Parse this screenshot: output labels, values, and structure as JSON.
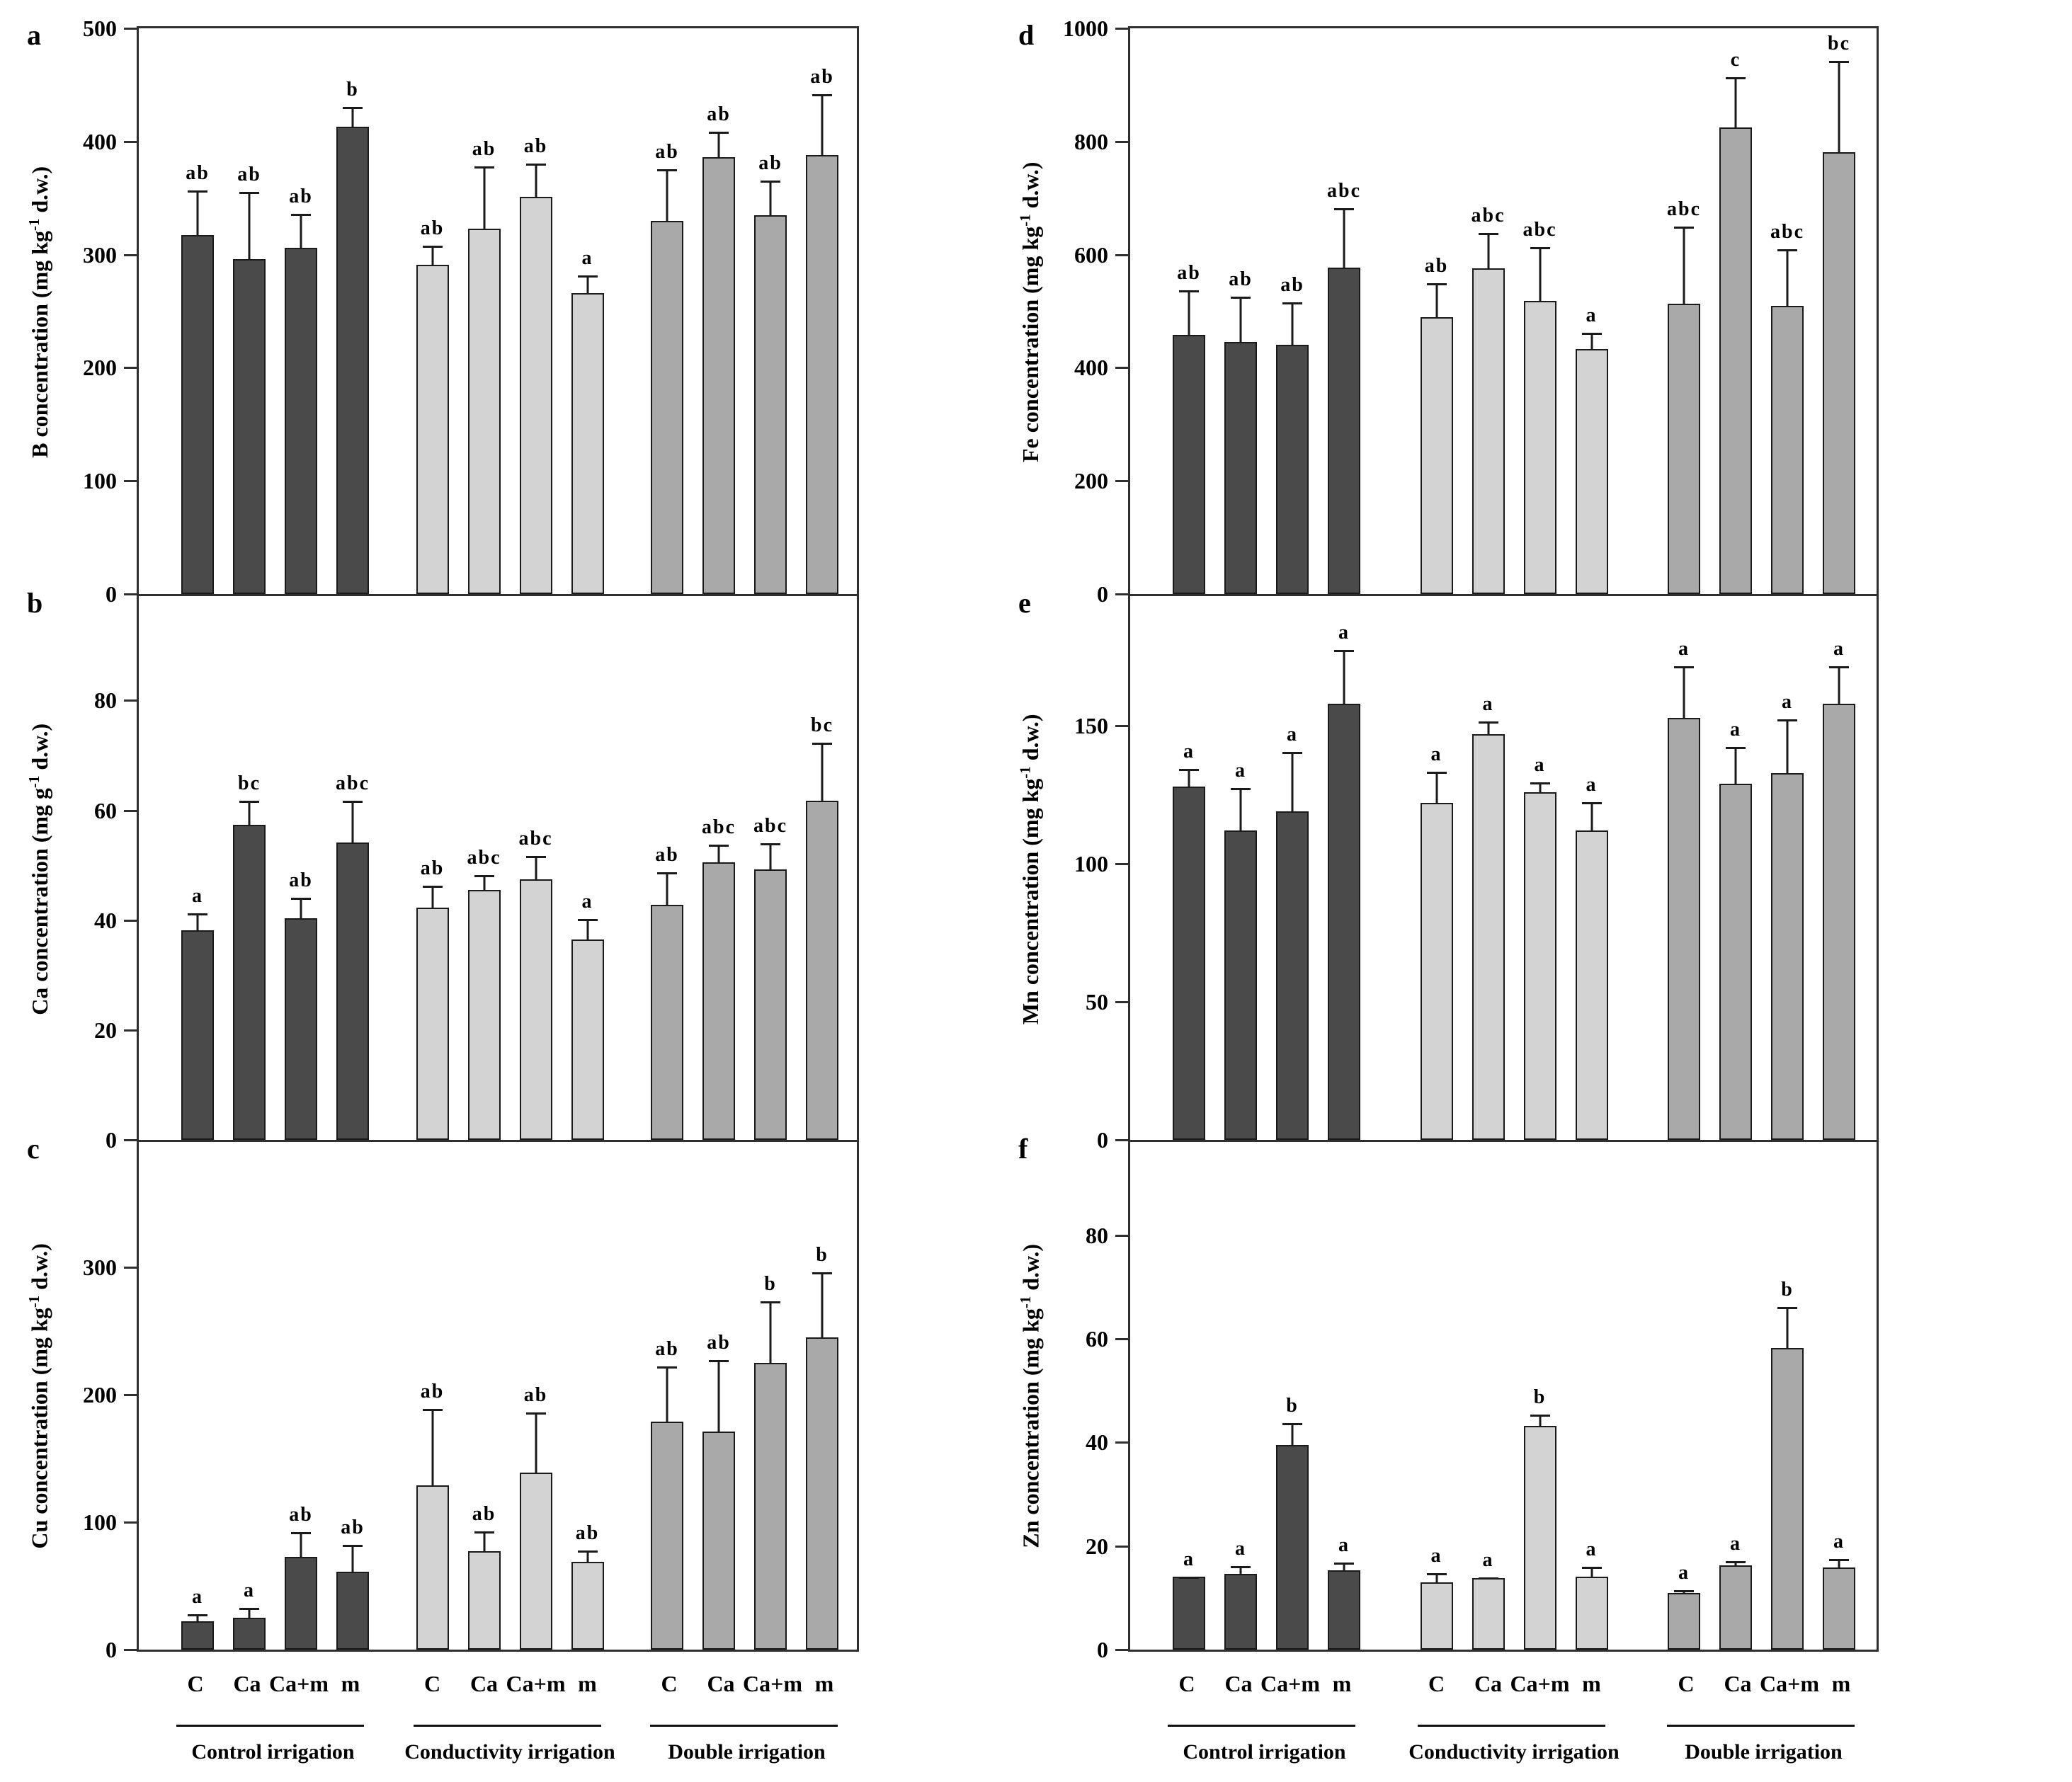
{
  "figure": {
    "panel_letters": [
      "a",
      "b",
      "c",
      "d",
      "e",
      "f"
    ],
    "treatments": [
      "C",
      "Ca",
      "Ca+m",
      "m"
    ],
    "group_names": [
      "Control irrigation",
      "Conductivity irrigation",
      "Double irrigation"
    ],
    "colors": {
      "control": "#4a4a4a",
      "conductivity": "#d3d3d3",
      "double": "#a9a9a9",
      "axis": "#2f2f2f",
      "text": "#000000"
    }
  },
  "chart_data": [
    {
      "panel": "a",
      "type": "bar",
      "ylabel_pre": "B concentration (mg kg",
      "ylabel_sup": "-1",
      "ylabel_post": " d.w.)",
      "ylim": [
        0,
        500
      ],
      "yticks": [
        0,
        100,
        200,
        300,
        400,
        500
      ],
      "categories": [
        "C",
        "Ca",
        "Ca+m",
        "m"
      ],
      "series": [
        {
          "name": "Control irrigation",
          "color_key": "control",
          "values": [
            317,
            296,
            306,
            413
          ],
          "err_top": [
            358,
            357,
            337,
            432
          ],
          "sig": [
            "ab",
            "ab",
            "ab",
            "b"
          ]
        },
        {
          "name": "Conductivity irrigation",
          "color_key": "conductivity",
          "values": [
            291,
            323,
            351,
            266
          ],
          "err_top": [
            309,
            379,
            382,
            283
          ],
          "sig": [
            "ab",
            "ab",
            "ab",
            "a"
          ]
        },
        {
          "name": "Double irrigation",
          "color_key": "double",
          "values": [
            330,
            386,
            335,
            388
          ],
          "err_top": [
            377,
            410,
            367,
            443
          ],
          "sig": [
            "ab",
            "ab",
            "ab",
            "ab"
          ]
        }
      ]
    },
    {
      "panel": "b",
      "type": "bar",
      "ylabel_pre": "Ca concentration (mg g",
      "ylabel_sup": "-1",
      "ylabel_post": " d.w.)",
      "ylim": [
        0,
        99
      ],
      "yticks": [
        0,
        20,
        40,
        60,
        80
      ],
      "categories": [
        "C",
        "Ca",
        "Ca+m",
        "m"
      ],
      "series": [
        {
          "name": "Control irrigation",
          "color_key": "control",
          "values": [
            38.2,
            57.4,
            40.3,
            54.2
          ],
          "err_top": [
            41.5,
            62,
            44.3,
            62
          ],
          "sig": [
            "a",
            "bc",
            "ab",
            "abc"
          ]
        },
        {
          "name": "Conductivity irrigation",
          "color_key": "conductivity",
          "values": [
            42.3,
            45.5,
            47.5,
            36.5
          ],
          "err_top": [
            46.5,
            48.5,
            52,
            40.5
          ],
          "sig": [
            "ab",
            "abc",
            "abc",
            "a"
          ]
        },
        {
          "name": "Double irrigation",
          "color_key": "double",
          "values": [
            42.8,
            50.5,
            49.3,
            61.7
          ],
          "err_top": [
            49,
            54,
            54.3,
            72.6
          ],
          "sig": [
            "ab",
            "abc",
            "abc",
            "bc"
          ]
        }
      ]
    },
    {
      "panel": "c",
      "type": "bar",
      "ylabel_pre": "Cu concentration (mg kg",
      "ylabel_sup": "-1",
      "ylabel_post": " d.w.)",
      "ylim": [
        0,
        398
      ],
      "yticks": [
        0,
        100,
        200,
        300
      ],
      "categories": [
        "C",
        "Ca",
        "Ca+m",
        "m"
      ],
      "series": [
        {
          "name": "Control irrigation",
          "color_key": "control",
          "values": [
            22,
            25,
            73,
            61
          ],
          "err_top": [
            29,
            34,
            93,
            83
          ],
          "sig": [
            "a",
            "a",
            "ab",
            "ab"
          ]
        },
        {
          "name": "Conductivity irrigation",
          "color_key": "conductivity",
          "values": [
            129,
            77,
            139,
            69
          ],
          "err_top": [
            190,
            94,
            187,
            79
          ],
          "sig": [
            "ab",
            "ab",
            "ab",
            "ab"
          ]
        },
        {
          "name": "Double irrigation",
          "color_key": "double",
          "values": [
            179,
            171,
            225,
            245
          ],
          "err_top": [
            223,
            228,
            274,
            297
          ],
          "sig": [
            "ab",
            "ab",
            "b",
            "b"
          ]
        }
      ]
    },
    {
      "panel": "d",
      "type": "bar",
      "ylabel_pre": "Fe concentration (mg kg",
      "ylabel_sup": "-1",
      "ylabel_post": " d.w.)",
      "ylim": [
        0,
        1000
      ],
      "yticks": [
        0,
        200,
        400,
        600,
        800,
        1000
      ],
      "categories": [
        "C",
        "Ca",
        "Ca+m",
        "m"
      ],
      "series": [
        {
          "name": "Control irrigation",
          "color_key": "control",
          "values": [
            458,
            446,
            440,
            577
          ],
          "err_top": [
            540,
            528,
            518,
            685
          ],
          "sig": [
            "ab",
            "ab",
            "ab",
            "abc"
          ]
        },
        {
          "name": "Conductivity irrigation",
          "color_key": "conductivity",
          "values": [
            490,
            576,
            518,
            433
          ],
          "err_top": [
            552,
            641,
            616,
            464
          ],
          "sig": [
            "ab",
            "abc",
            "abc",
            "a"
          ]
        },
        {
          "name": "Double irrigation",
          "color_key": "double",
          "values": [
            513,
            825,
            510,
            781
          ],
          "err_top": [
            652,
            916,
            612,
            945
          ],
          "sig": [
            "abc",
            "c",
            "abc",
            "bc"
          ]
        }
      ]
    },
    {
      "panel": "e",
      "type": "bar",
      "ylabel_pre": "Mn concentration (mg kg",
      "ylabel_sup": "-1",
      "ylabel_post": " d.w.)",
      "ylim": [
        0,
        197
      ],
      "yticks": [
        0,
        50,
        100,
        150
      ],
      "categories": [
        "C",
        "Ca",
        "Ca+m",
        "m"
      ],
      "series": [
        {
          "name": "Control irrigation",
          "color_key": "control",
          "values": [
            128,
            112,
            119,
            158
          ],
          "err_top": [
            135,
            128,
            141,
            178
          ],
          "sig": [
            "a",
            "a",
            "a",
            "a"
          ]
        },
        {
          "name": "Conductivity irrigation",
          "color_key": "conductivity",
          "values": [
            122,
            147,
            126,
            112
          ],
          "err_top": [
            134,
            152,
            130,
            123
          ],
          "sig": [
            "a",
            "a",
            "a",
            "a"
          ]
        },
        {
          "name": "Double irrigation",
          "color_key": "double",
          "values": [
            153,
            129,
            133,
            158
          ],
          "err_top": [
            172,
            143,
            153,
            172
          ],
          "sig": [
            "a",
            "a",
            "a",
            "a"
          ]
        }
      ]
    },
    {
      "panel": "f",
      "type": "bar",
      "ylabel_pre": "Zn concentration (mg kg",
      "ylabel_sup": "-1",
      "ylabel_post": " d.w.)",
      "ylim": [
        0,
        98
      ],
      "yticks": [
        0,
        20,
        40,
        60,
        80
      ],
      "categories": [
        "C",
        "Ca",
        "Ca+m",
        "m"
      ],
      "series": [
        {
          "name": "Control irrigation",
          "color_key": "control",
          "values": [
            14.1,
            14.6,
            39.5,
            15.3
          ],
          "err_top": [
            14.4,
            16.4,
            44,
            17.1
          ],
          "sig": [
            "a",
            "a",
            "b",
            "a"
          ]
        },
        {
          "name": "Conductivity irrigation",
          "color_key": "conductivity",
          "values": [
            13,
            13.8,
            43.2,
            14.1
          ],
          "err_top": [
            15.1,
            14.2,
            45.6,
            16.2
          ],
          "sig": [
            "a",
            "a",
            "b",
            "a"
          ]
        },
        {
          "name": "Double irrigation",
          "color_key": "double",
          "values": [
            11,
            16.2,
            58.2,
            15.8
          ],
          "err_top": [
            11.8,
            17.4,
            66.4,
            17.8
          ],
          "sig": [
            "a",
            "a",
            "b",
            "a"
          ]
        }
      ]
    }
  ]
}
